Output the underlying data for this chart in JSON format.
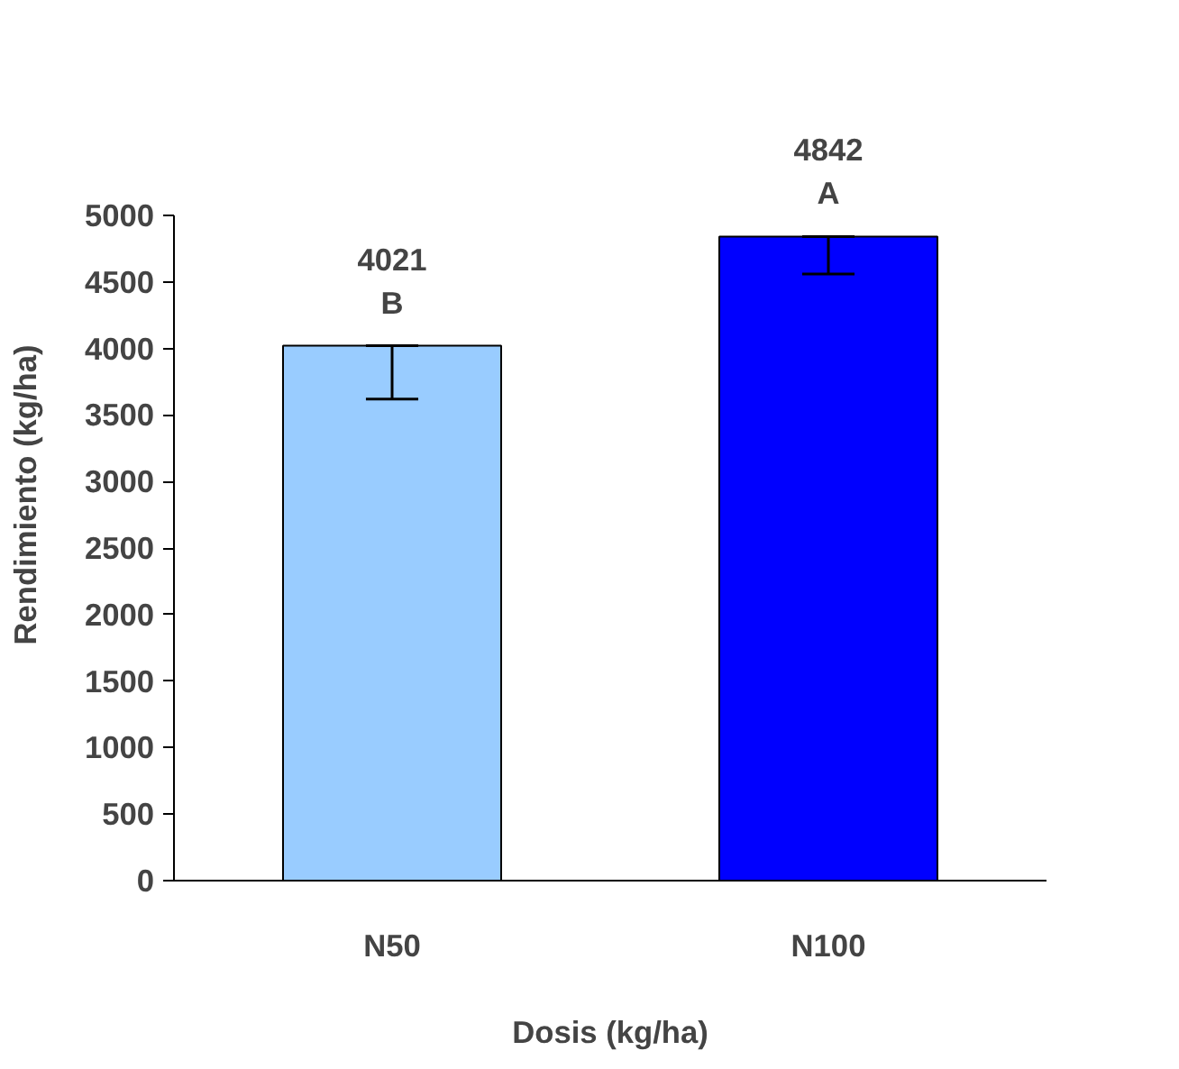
{
  "chart_data": {
    "type": "bar",
    "xlabel": "Dosis (kg/ha)",
    "ylabel": "Rendimiento (kg/ha)",
    "categories": [
      "N50",
      "N100"
    ],
    "values": [
      4021,
      4842
    ],
    "colors": [
      "#99ccff",
      "#0000ff"
    ],
    "errors": [
      [
        3620,
        4021
      ],
      [
        4560,
        4842
      ]
    ],
    "value_labels": [
      "4021",
      "4842"
    ],
    "annotations": [
      {
        "text": "B",
        "x": "N50",
        "y": 4021
      },
      {
        "text": "A",
        "x": "N100",
        "y": 4842
      }
    ],
    "ylim": [
      0,
      5000
    ],
    "yticks": [
      0,
      500,
      1000,
      1500,
      2000,
      2500,
      3000,
      3500,
      4000,
      4500,
      5000
    ],
    "grid": false
  }
}
